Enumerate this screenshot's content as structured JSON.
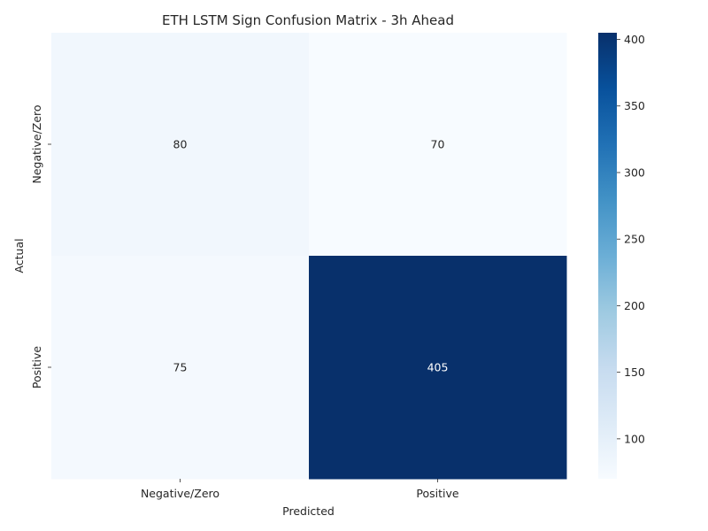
{
  "chart_data": {
    "type": "heatmap",
    "title": "ETH LSTM Sign Confusion Matrix - 3h Ahead",
    "xlabel": "Predicted",
    "ylabel": "Actual",
    "x_categories": [
      "Negative/Zero",
      "Positive"
    ],
    "y_categories": [
      "Negative/Zero",
      "Positive"
    ],
    "values": [
      [
        80,
        70
      ],
      [
        75,
        405
      ]
    ],
    "colorscale": "Blues",
    "color_range": [
      70,
      405
    ],
    "colorbar_ticks": [
      100,
      150,
      200,
      250,
      300,
      350,
      400
    ],
    "colors": {
      "low": "#f7fbff",
      "high": "#08306b",
      "text_on_light": "#262626",
      "text_on_dark": "#ffffff"
    }
  }
}
